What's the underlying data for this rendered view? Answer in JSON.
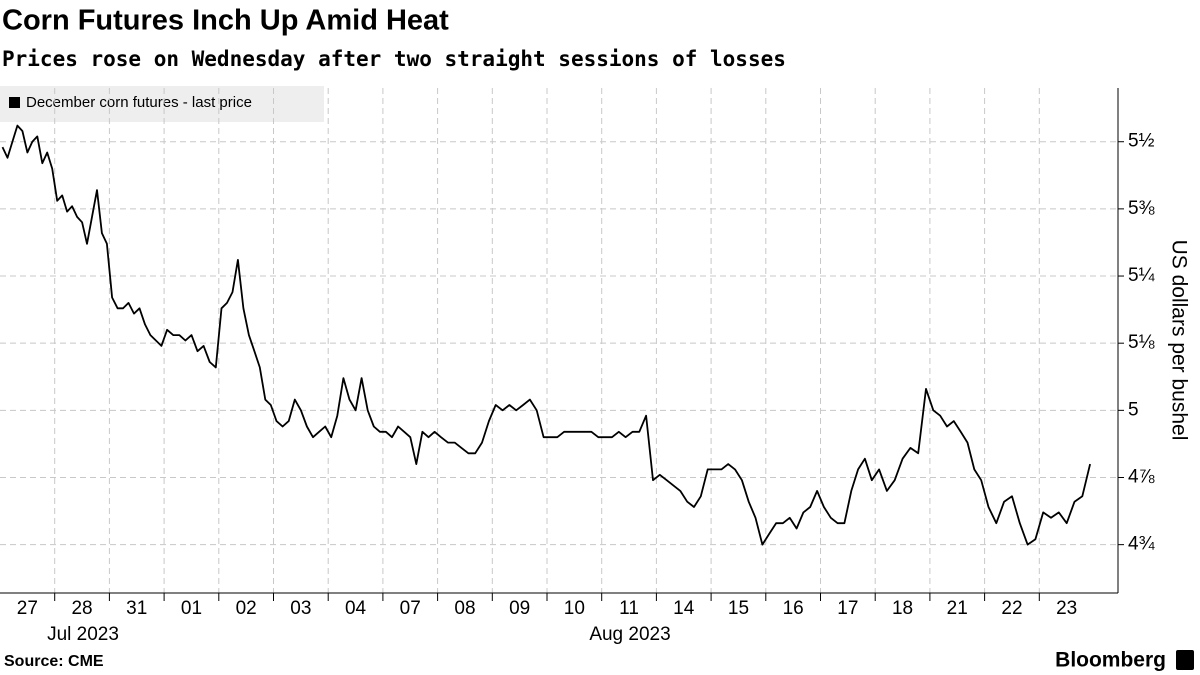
{
  "chart_data": {
    "type": "line",
    "title": "Corn Futures Inch Up Amid Heat",
    "subtitle": "Prices rose on Wednesday after two straight sessions of losses",
    "y_label": "US dollars per bushel",
    "source": "Source: CME",
    "brand": "Bloomberg",
    "months": [
      "Jul 2023",
      "Aug 2023"
    ],
    "categories": [
      "27",
      "28",
      "31",
      "01",
      "02",
      "03",
      "04",
      "07",
      "08",
      "09",
      "10",
      "11",
      "14",
      "15",
      "16",
      "17",
      "18",
      "21",
      "22",
      "23"
    ],
    "series": [
      {
        "name": "December corn futures - last price",
        "color": "#000000",
        "values": [
          [
            5.49,
            5.47,
            5.5,
            5.53,
            5.52,
            5.48,
            5.5,
            5.51,
            5.46,
            5.48,
            5.45
          ],
          [
            5.39,
            5.4,
            5.37,
            5.38,
            5.36,
            5.35,
            5.31,
            5.36,
            5.41,
            5.33,
            5.31
          ],
          [
            5.21,
            5.19,
            5.19,
            5.2,
            5.18,
            5.19,
            5.16,
            5.14,
            5.13,
            5.12
          ],
          [
            5.15,
            5.14,
            5.14,
            5.13,
            5.14,
            5.11,
            5.12,
            5.09,
            5.08
          ],
          [
            5.19,
            5.2,
            5.22,
            5.28,
            5.19,
            5.14,
            5.11,
            5.08,
            5.02,
            5.01
          ],
          [
            4.98,
            4.97,
            4.98,
            5.02,
            5.0,
            4.97,
            4.95,
            4.96,
            4.97
          ],
          [
            4.95,
            4.99,
            5.06,
            5.02,
            5.0,
            5.06,
            5.0,
            4.97,
            4.96
          ],
          [
            4.96,
            4.95,
            4.97,
            4.96,
            4.95,
            4.9,
            4.96,
            4.95,
            4.96
          ],
          [
            4.95,
            4.94,
            4.94,
            4.93,
            4.92,
            4.92,
            4.94,
            4.98
          ],
          [
            5.01,
            5.0,
            5.01,
            5.0,
            5.01,
            5.02,
            5.0,
            4.95
          ],
          [
            4.95,
            4.95,
            4.96,
            4.96,
            4.96,
            4.96,
            4.96,
            4.95
          ],
          [
            4.95,
            4.95,
            4.96,
            4.95,
            4.96,
            4.96,
            4.99,
            4.87
          ],
          [
            4.88,
            4.87,
            4.86,
            4.85,
            4.83,
            4.82,
            4.84,
            4.89
          ],
          [
            4.89,
            4.89,
            4.9,
            4.89,
            4.87,
            4.83,
            4.8,
            4.75
          ],
          [
            4.77,
            4.79,
            4.79,
            4.8,
            4.78,
            4.81,
            4.82,
            4.85
          ],
          [
            4.82,
            4.8,
            4.79,
            4.79,
            4.85,
            4.89,
            4.91,
            4.87
          ],
          [
            4.89,
            4.85,
            4.87,
            4.91,
            4.93,
            4.92,
            5.04
          ],
          [
            5.0,
            4.99,
            4.97,
            4.98,
            4.96,
            4.94,
            4.89,
            4.87
          ],
          [
            4.82,
            4.79,
            4.83,
            4.84,
            4.79,
            4.75,
            4.76
          ],
          [
            4.81,
            4.8,
            4.81,
            4.79,
            4.83,
            4.84,
            4.9
          ]
        ]
      }
    ],
    "ylim": [
      4.66,
      5.6
    ],
    "yticks": [
      {
        "value": 4.75,
        "label": "4¾"
      },
      {
        "value": 4.875,
        "label": "4⅞"
      },
      5,
      {
        "value": 5.125,
        "label": "5⅛"
      },
      {
        "value": 5.25,
        "label": "5¼"
      },
      {
        "value": 5.375,
        "label": "5⅜"
      },
      {
        "value": 5.5,
        "label": "5½"
      }
    ],
    "grid": true
  }
}
